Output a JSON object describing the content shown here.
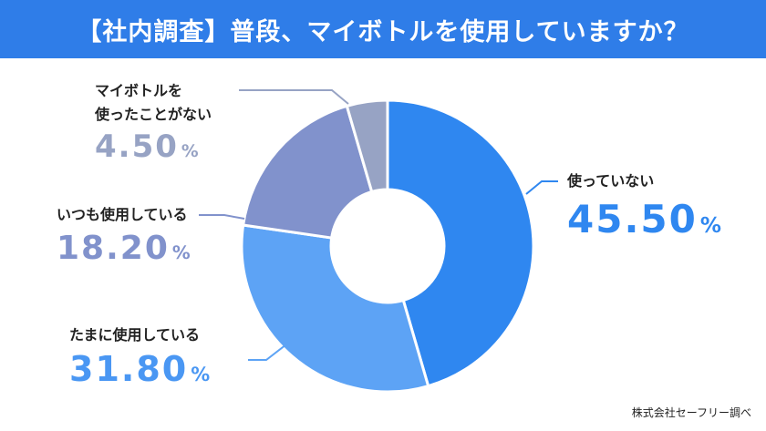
{
  "header": {
    "title": "【社内調査】普段、マイボトルを使用していますか？",
    "background_color": "#2f7de8"
  },
  "chart_data": {
    "type": "pie",
    "donut": true,
    "start_angle_deg": 0,
    "direction": "clockwise",
    "slices": [
      {
        "label": "使っていない",
        "value": 45.5,
        "display": "45.50",
        "color": "#2f87f0"
      },
      {
        "label": "たまに使用している",
        "value": 31.8,
        "display": "31.80",
        "color": "#5da3f5"
      },
      {
        "label": "いつも使用している",
        "value": 18.2,
        "display": "18.20",
        "color": "#8192cc"
      },
      {
        "label_lines": [
          "マイボトルを",
          "使ったことがない"
        ],
        "value": 4.5,
        "display": "4.50",
        "color": "#97a3c4"
      }
    ],
    "unit": "%"
  },
  "footer": {
    "source": "株式会社セーフリー調べ"
  }
}
